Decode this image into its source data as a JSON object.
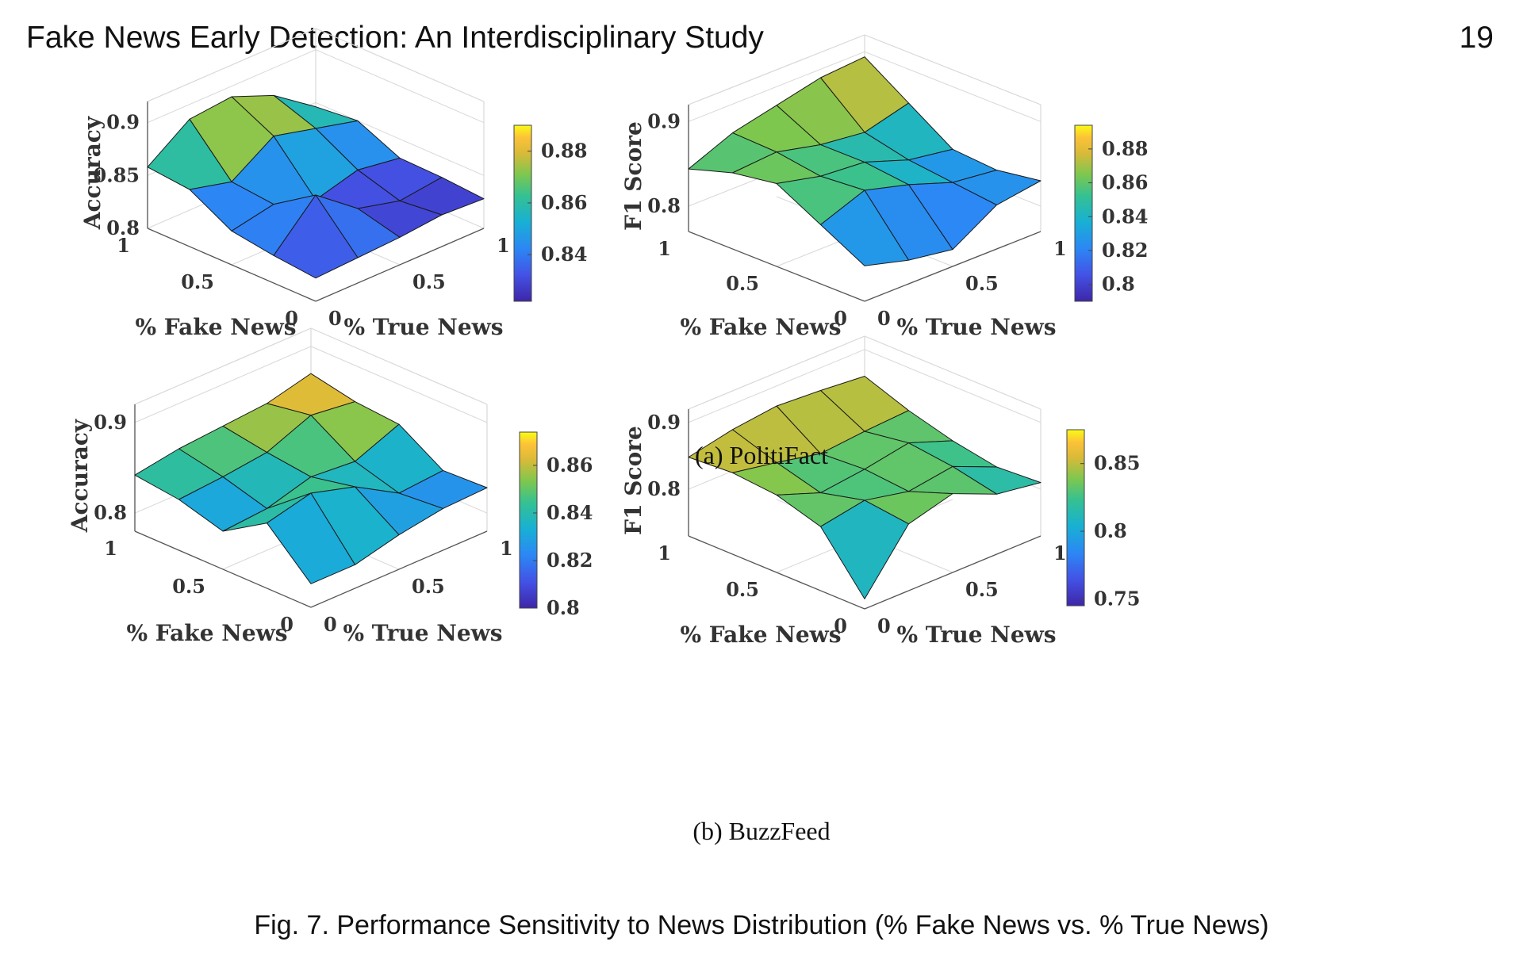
{
  "header": {
    "title": "Fake News Early Detection: An Interdisciplinary Study",
    "page_number": "19"
  },
  "subfigures": [
    {
      "label": "(a)",
      "name": "PolitiFact"
    },
    {
      "label": "(b)",
      "name": "BuzzFeed"
    }
  ],
  "caption": "Fig. 7.  Performance Sensitivity to News Distribution (% Fake News vs. % True News)",
  "chart_data": [
    {
      "type": "surface",
      "panel": "(a) PolitiFact - Accuracy",
      "xlabel": "% Fake News",
      "ylabel": "% True News",
      "zlabel": "Accuracy",
      "x": [
        0,
        0.25,
        0.5,
        0.75,
        1
      ],
      "y": [
        0,
        0.25,
        0.5,
        0.75,
        1
      ],
      "x_ticks": [
        "0",
        "0.5",
        "1"
      ],
      "y_ticks": [
        "0",
        "0.5",
        "1"
      ],
      "zlim": [
        0.8,
        0.92
      ],
      "z_ticks": [
        "0.8",
        "0.85",
        "0.9"
      ],
      "colorbar": {
        "range": [
          0.822,
          0.89
        ],
        "ticks": [
          "0.84",
          "0.86",
          "0.88"
        ]
      },
      "z": [
        [
          0.822,
          0.824,
          0.826,
          0.83,
          0.828
        ],
        [
          0.826,
          0.866,
          0.836,
          0.826,
          0.831
        ],
        [
          0.832,
          0.84,
          0.827,
          0.838,
          0.832
        ],
        [
          0.854,
          0.844,
          0.87,
          0.86,
          0.85
        ],
        [
          0.858,
          0.886,
          0.89,
          0.874,
          0.846
        ]
      ]
    },
    {
      "type": "surface",
      "panel": "(a) PolitiFact - F1 Score",
      "xlabel": "% Fake News",
      "ylabel": "% True News",
      "zlabel": "F1 Score",
      "x": [
        0,
        0.25,
        0.5,
        0.75,
        1
      ],
      "y": [
        0,
        0.25,
        0.5,
        0.75,
        1
      ],
      "x_ticks": [
        "0",
        "0.5",
        "1"
      ],
      "y_ticks": [
        "0",
        "0.5",
        "1"
      ],
      "zlim": [
        0.77,
        0.92
      ],
      "z_ticks": [
        "0.8",
        "0.9"
      ],
      "colorbar": {
        "range": [
          0.79,
          0.894
        ],
        "ticks": [
          "0.8",
          "0.82",
          "0.84",
          "0.86",
          "0.88"
        ]
      },
      "z": [
        [
          0.812,
          0.798,
          0.79,
          0.822,
          0.83
        ],
        [
          0.84,
          0.86,
          0.846,
          0.828,
          0.822
        ],
        [
          0.868,
          0.856,
          0.852,
          0.834,
          0.826
        ],
        [
          0.86,
          0.864,
          0.852,
          0.846,
          0.86
        ],
        [
          0.844,
          0.866,
          0.878,
          0.89,
          0.894
        ]
      ]
    },
    {
      "type": "surface",
      "panel": "(b) BuzzFeed - Accuracy",
      "xlabel": "% Fake News",
      "ylabel": "% True News",
      "zlabel": "Accuracy",
      "x": [
        0,
        0.25,
        0.5,
        0.75,
        1
      ],
      "y": [
        0,
        0.25,
        0.5,
        0.75,
        1
      ],
      "x_ticks": [
        "0",
        "0.5",
        "1"
      ],
      "y_ticks": [
        "0",
        "0.5",
        "1"
      ],
      "zlim": [
        0.78,
        0.92
      ],
      "z_ticks": [
        "0.8",
        "0.9"
      ],
      "colorbar": {
        "range": [
          0.8,
          0.874
        ],
        "ticks": [
          "0.8",
          "0.82",
          "0.84",
          "0.86"
        ]
      },
      "z": [
        [
          0.806,
          0.806,
          0.818,
          0.826,
          0.828
        ],
        [
          0.852,
          0.864,
          0.85,
          0.822,
          0.826
        ],
        [
          0.822,
          0.826,
          0.84,
          0.836,
          0.856
        ],
        [
          0.836,
          0.84,
          0.846,
          0.866,
          0.86
        ],
        [
          0.842,
          0.85,
          0.854,
          0.858,
          0.87
        ]
      ]
    },
    {
      "type": "surface",
      "panel": "(b) BuzzFeed - F1 Score",
      "xlabel": "% Fake News",
      "ylabel": "% True News",
      "zlabel": "F1 Score",
      "x": [
        0,
        0.25,
        0.5,
        0.75,
        1
      ],
      "y": [
        0,
        0.25,
        0.5,
        0.75,
        1
      ],
      "x_ticks": [
        "0",
        "0.5",
        "1"
      ],
      "y_ticks": [
        "0",
        "0.5",
        "1"
      ],
      "zlim": [
        0.73,
        0.92
      ],
      "z_ticks": [
        "0.8",
        "0.9"
      ],
      "colorbar": {
        "range": [
          0.745,
          0.875
        ],
        "ticks": [
          "0.75",
          "0.8",
          "0.85"
        ]
      },
      "z": [
        [
          0.745,
          0.83,
          0.848,
          0.82,
          0.81
        ],
        [
          0.826,
          0.838,
          0.824,
          0.834,
          0.806
        ],
        [
          0.846,
          0.822,
          0.83,
          0.842,
          0.818
        ],
        [
          0.852,
          0.84,
          0.826,
          0.832,
          0.836
        ],
        [
          0.848,
          0.862,
          0.87,
          0.866,
          0.86
        ]
      ]
    }
  ]
}
